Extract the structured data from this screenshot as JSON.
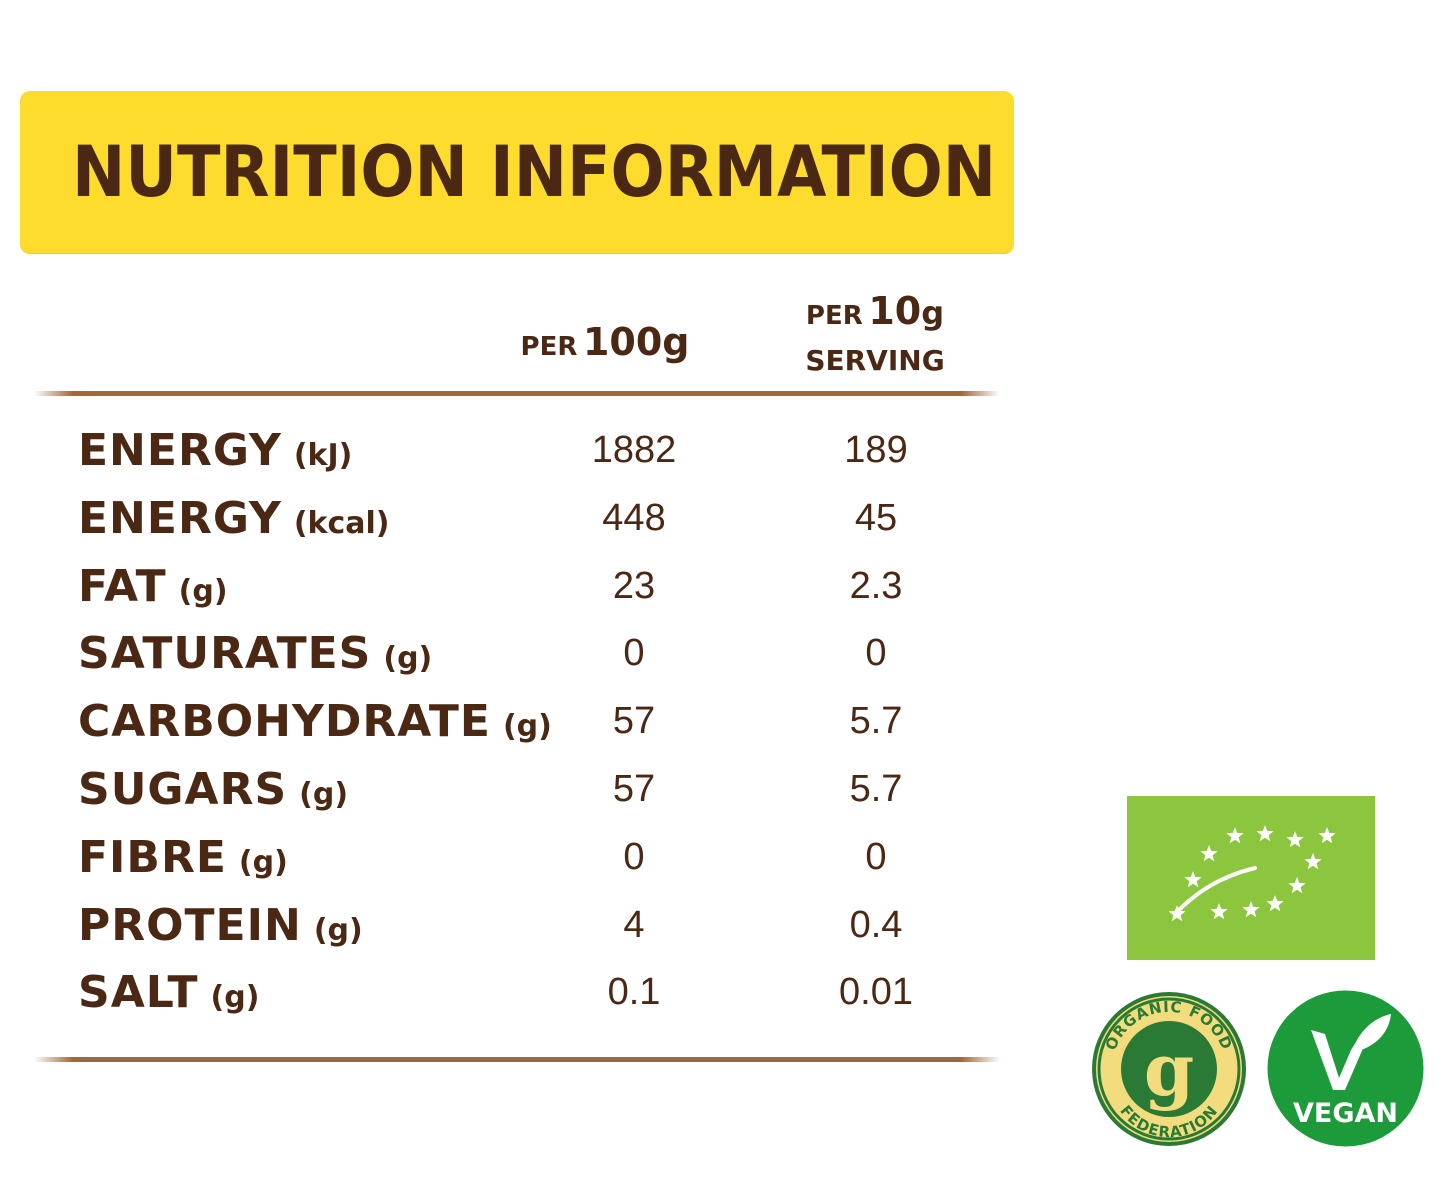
{
  "title": "NUTRITION INFORMATION",
  "columns": {
    "per100": {
      "prefix": "PER",
      "amount": "100g"
    },
    "per10": {
      "prefix": "PER",
      "amount": "10",
      "unit": "g",
      "line2": "SERVING"
    }
  },
  "rows": [
    {
      "name": "ENERGY",
      "unit": "(kJ)",
      "per100": "1882",
      "per10": "189"
    },
    {
      "name": "ENERGY",
      "unit": "(kcal)",
      "per100": "448",
      "per10": "45"
    },
    {
      "name": "FAT",
      "unit": "(g)",
      "per100": "23",
      "per10": "2.3"
    },
    {
      "name": "SATURATES",
      "unit": "(g)",
      "per100": "0",
      "per10": "0"
    },
    {
      "name": "CARBOHYDRATE",
      "unit": "(g)",
      "per100": "57",
      "per10": "5.7"
    },
    {
      "name": "SUGARS",
      "unit": "(g)",
      "per100": "57",
      "per10": "5.7"
    },
    {
      "name": "FIBRE",
      "unit": "(g)",
      "per100": "0",
      "per10": "0"
    },
    {
      "name": "PROTEIN",
      "unit": "(g)",
      "per100": "4",
      "per10": "0.4"
    },
    {
      "name": "SALT",
      "unit": "(g)",
      "per100": "0.1",
      "per10": "0.01"
    }
  ],
  "logos": {
    "eu_organic": {
      "icon": "eu-organic-leaf-icon"
    },
    "organic_food_federation": {
      "icon": "organic-food-federation-seal",
      "text": "ORGANIC FOOD FEDERATION"
    },
    "vegan": {
      "icon": "vegan-v-leaf-icon",
      "text": "VEGAN"
    }
  },
  "colors": {
    "banner": "#fddc2e",
    "text_brown": "#4a2814",
    "rule": "#a0693c",
    "eu_green": "#8cc63f",
    "off_green": "#2a7a35",
    "off_cream": "#f3dc7e",
    "vegan_green": "#1d9a3a"
  }
}
